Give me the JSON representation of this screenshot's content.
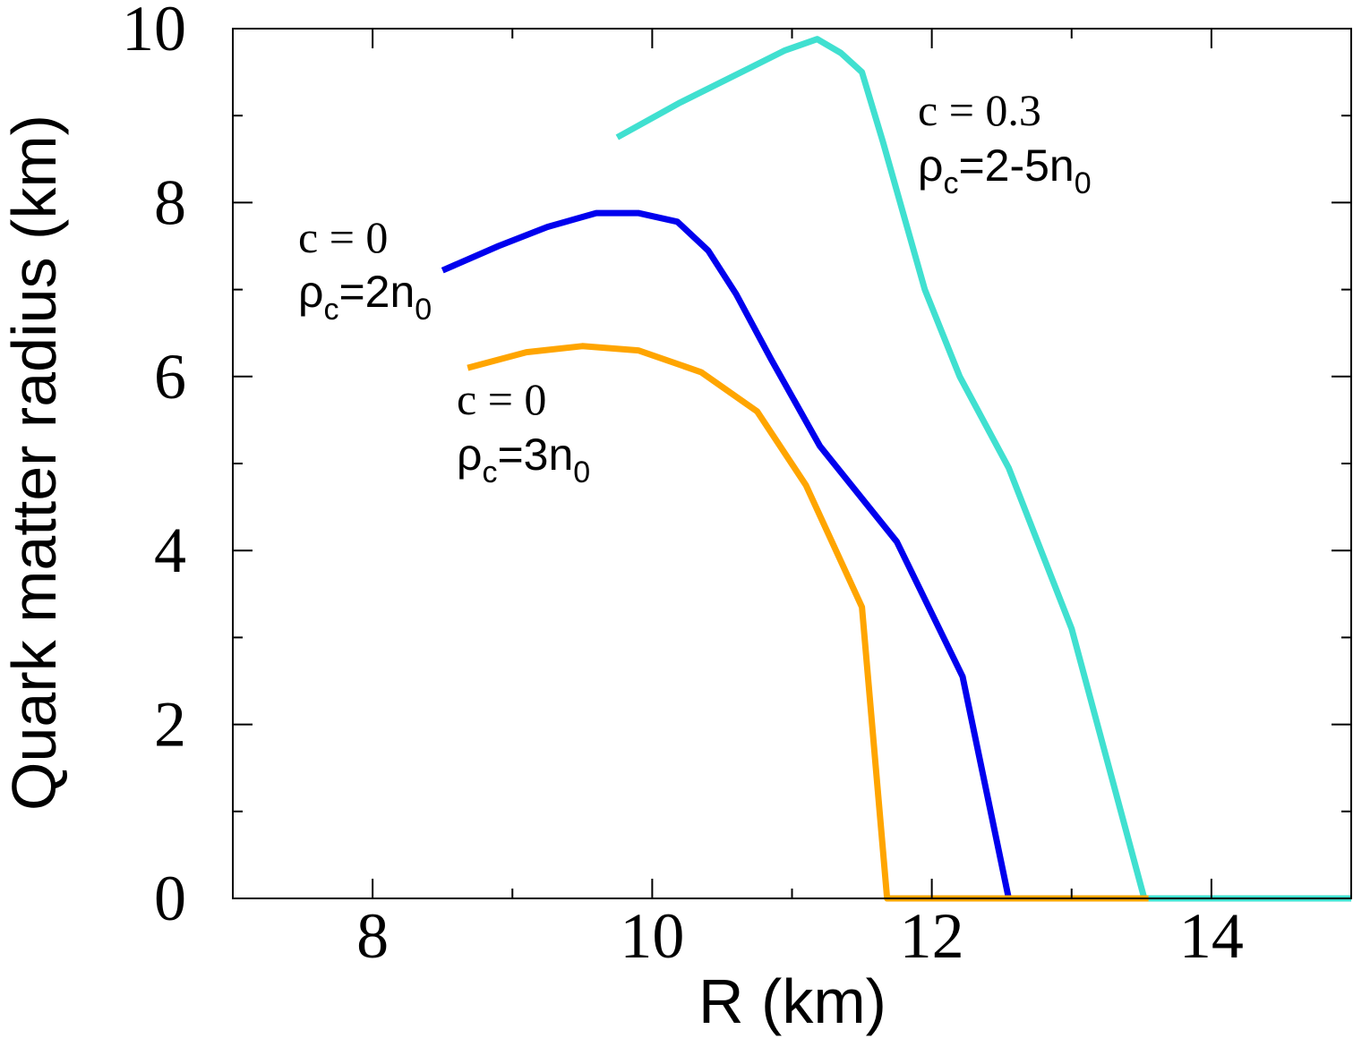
{
  "chart_data": {
    "type": "line",
    "xlabel": "R (km)",
    "ylabel": "Quark matter radius (km)",
    "xlim": [
      7,
      15
    ],
    "ylim": [
      0,
      10
    ],
    "x_ticks": [
      8,
      10,
      12,
      14
    ],
    "y_ticks": [
      0,
      2,
      4,
      6,
      8,
      10
    ],
    "x_tick_labels": [
      "8",
      "10",
      "12",
      "14"
    ],
    "y_tick_labels": [
      "0",
      "2",
      "4",
      "6",
      "8",
      "10"
    ],
    "grid": false,
    "legend": "none",
    "series": [
      {
        "color": "#40e0d0",
        "points": [
          [
            9.75,
            8.75
          ],
          [
            10.2,
            9.15
          ],
          [
            10.7,
            9.55
          ],
          [
            10.95,
            9.75
          ],
          [
            11.18,
            9.88
          ],
          [
            11.35,
            9.72
          ],
          [
            11.5,
            9.5
          ],
          [
            11.65,
            8.7
          ],
          [
            11.95,
            7.0
          ],
          [
            12.2,
            6.0
          ],
          [
            12.55,
            4.95
          ],
          [
            13.0,
            3.1
          ],
          [
            13.52,
            0.0
          ],
          [
            15.0,
            0.0
          ]
        ]
      },
      {
        "color": "#0000ee",
        "points": [
          [
            8.5,
            7.22
          ],
          [
            8.9,
            7.5
          ],
          [
            9.25,
            7.72
          ],
          [
            9.6,
            7.88
          ],
          [
            9.9,
            7.88
          ],
          [
            10.18,
            7.78
          ],
          [
            10.4,
            7.45
          ],
          [
            10.6,
            6.95
          ],
          [
            10.85,
            6.2
          ],
          [
            11.2,
            5.2
          ],
          [
            11.75,
            4.1
          ],
          [
            12.22,
            2.55
          ],
          [
            12.55,
            0.0
          ]
        ]
      },
      {
        "color": "#ffa500",
        "points": [
          [
            8.68,
            6.1
          ],
          [
            9.1,
            6.28
          ],
          [
            9.5,
            6.35
          ],
          [
            9.9,
            6.3
          ],
          [
            10.35,
            6.05
          ],
          [
            10.75,
            5.6
          ],
          [
            11.1,
            4.75
          ],
          [
            11.5,
            3.35
          ],
          [
            11.68,
            0.0
          ],
          [
            13.55,
            0.0
          ]
        ]
      }
    ],
    "annotations": [
      {
        "c_text": "c = 0.3",
        "rho_base": "ρ",
        "rho_sub": "c",
        "rho_rest": "=2-5n",
        "rho_end_sub": "0",
        "color": "#000000"
      },
      {
        "c_text": "c = 0",
        "rho_base": "ρ",
        "rho_sub": "c",
        "rho_rest": "=2n",
        "rho_end_sub": "0",
        "color": "#000000"
      },
      {
        "c_text": "c = 0",
        "rho_base": "ρ",
        "rho_sub": "c",
        "rho_rest": "=3n",
        "rho_end_sub": "0",
        "color": "#000000"
      }
    ]
  }
}
